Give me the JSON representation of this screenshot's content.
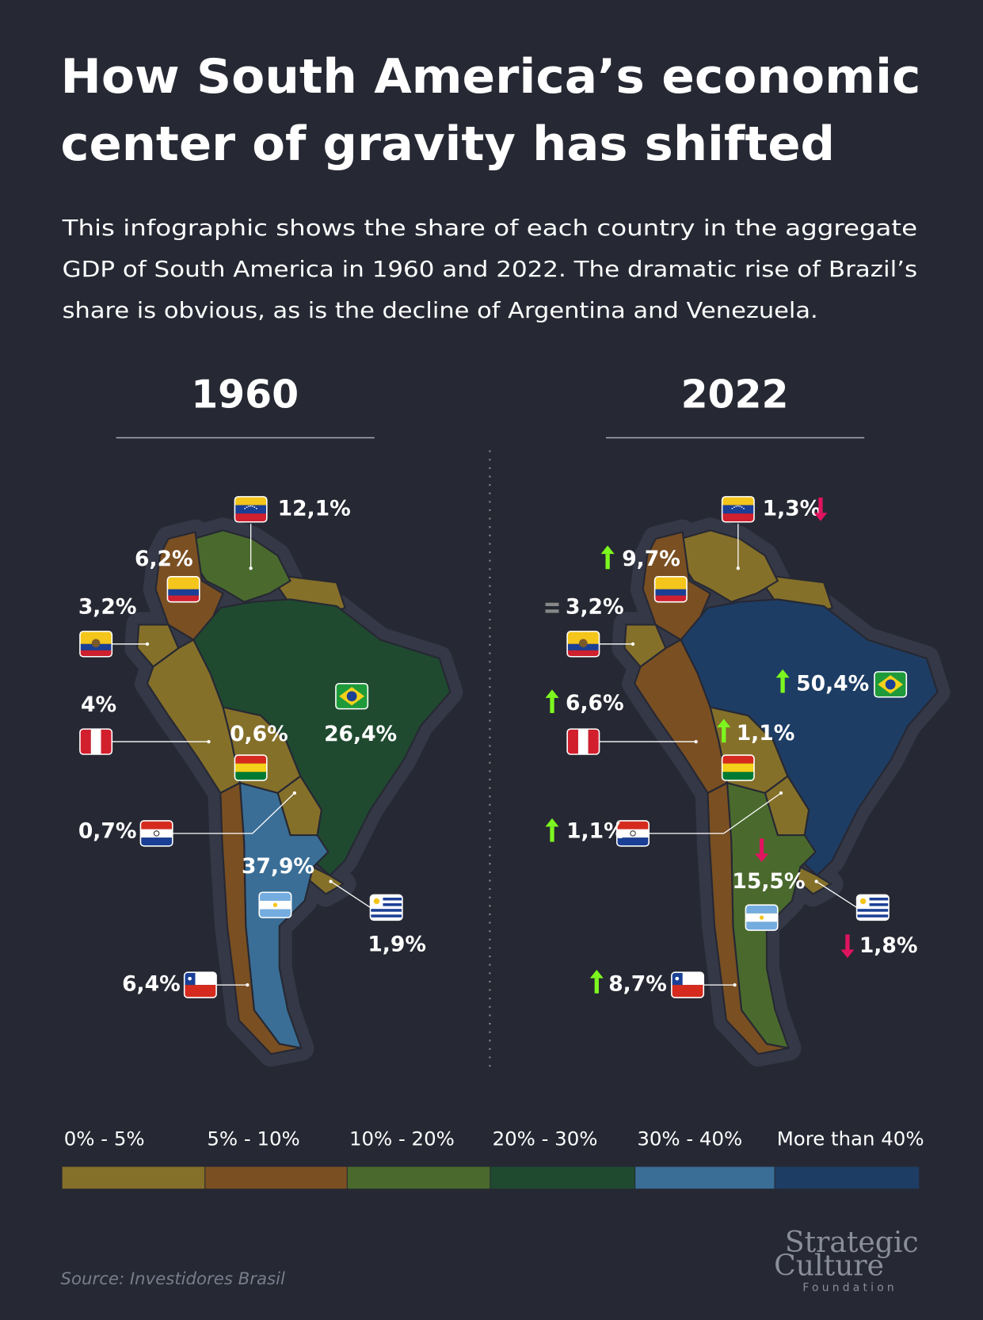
{
  "title_lines": [
    "How South America’s economic",
    "center of gravity has shifted"
  ],
  "subtitle_lines": [
    "This infographic shows the share of each country in the aggregate",
    "GDP of South America in 1960 and 2022. The dramatic rise of Brazil’s",
    "share is obvious, as is the decline of Argentina and Venezuela."
  ],
  "maps": [
    {
      "year": "1960",
      "regions": [
        {
          "label": "12,1%",
          "color": "#4a6a2d"
        },
        {
          "label": "6,2%",
          "color": "#7a4f22"
        },
        {
          "label": "3,2%",
          "color": "#85702a"
        },
        {
          "label": "4%",
          "color": "#85702a"
        },
        {
          "label": "0,6%",
          "color": "#85702a"
        },
        {
          "label": "26,4%",
          "color": "#1f4a30"
        },
        {
          "label": "0,7%",
          "color": "#85702a"
        },
        {
          "label": "37,9%",
          "color": "#3a6e96"
        },
        {
          "label": "1,9%",
          "color": "#85702a"
        },
        {
          "label": "6,4%",
          "color": "#7a4f22"
        }
      ]
    },
    {
      "year": "2022",
      "regions": [
        {
          "label": "1,3%",
          "color": "#85702a"
        },
        {
          "label": "9,7%",
          "color": "#7a4f22"
        },
        {
          "label": "3,2%",
          "color": "#85702a"
        },
        {
          "label": "6,6%",
          "color": "#7a4f22"
        },
        {
          "label": "1,1%",
          "color": "#85702a"
        },
        {
          "label": "50,4%",
          "color": "#1d3d64"
        },
        {
          "label": "1,1%",
          "color": "#85702a"
        },
        {
          "label": "15,5%",
          "color": "#4a6a2d"
        },
        {
          "label": "1,8%",
          "color": "#85702a"
        },
        {
          "label": "8,7%",
          "color": "#7a4f22"
        }
      ]
    }
  ],
  "legend": [
    {
      "label": "0% - 5%",
      "color": "#85702a"
    },
    {
      "label": "5% - 10%",
      "color": "#7a4f22"
    },
    {
      "label": "10% - 20%",
      "color": "#4a6a2d"
    },
    {
      "label": "20% - 30%",
      "color": "#1f4a30"
    },
    {
      "label": "30% - 40%",
      "color": "#3a6e96"
    },
    {
      "label": "More than 40%",
      "color": "#1d3d64"
    }
  ],
  "source": "Source: Investidores Brasil",
  "logo": {
    "line1": "Strategic",
    "line2": "Culture",
    "line3": "Foundation"
  }
}
